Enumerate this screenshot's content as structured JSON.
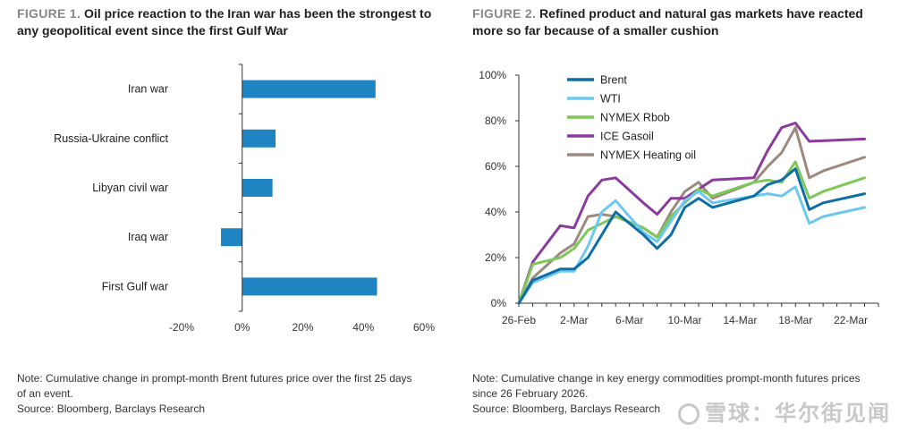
{
  "figure1": {
    "label": "FIGURE 1.",
    "title_line1": "Oil price reaction to the Iran war has been the strongest to",
    "title_line2": "any geopolitical event since the first Gulf War",
    "note_line1": "Note: Cumulative change in prompt-month Brent futures price over the first 25 days",
    "note_line2": "of an event.",
    "source": "Source: Bloomberg, Barclays Research"
  },
  "figure2": {
    "label": "FIGURE 2.",
    "title_line1": "Refined product and natural gas markets have reacted",
    "title_line2": "more so far because of a smaller cushion",
    "note_line1": "Note: Cumulative change in key energy commodities prompt-month futures prices",
    "note_line2": "since 26 February 2026.",
    "source": "Source: Bloomberg, Barclays Research"
  },
  "watermark": "雪球：华尔街见闻",
  "colors": {
    "bar": "#1e85c2",
    "brent": "#0f6ea6",
    "wti": "#6dc8ef",
    "rbob": "#7cc95a",
    "gasoil": "#8b3a9e",
    "heating": "#9c8a80"
  },
  "chart_data": [
    {
      "type": "bar",
      "orientation": "horizontal",
      "categories": [
        "Iran war",
        "Russia-Ukraine conflict",
        "Libyan civil war",
        "Iraq war",
        "First Gulf war"
      ],
      "values": [
        44,
        11,
        10,
        -7,
        44.5
      ],
      "xlim": [
        -20,
        60
      ],
      "xticks": [
        -20,
        0,
        20,
        40,
        60
      ],
      "tick_labels": [
        "-20%",
        "0%",
        "20%",
        "40%",
        "60%"
      ],
      "grid": false
    },
    {
      "type": "line",
      "x": [
        "26-Feb",
        "27-Feb",
        "28-Feb",
        "1-Mar",
        "2-Mar",
        "3-Mar",
        "4-Mar",
        "5-Mar",
        "6-Mar",
        "7-Mar",
        "8-Mar",
        "9-Mar",
        "10-Mar",
        "11-Mar",
        "12-Mar",
        "13-Mar",
        "14-Mar",
        "15-Mar",
        "16-Mar",
        "17-Mar",
        "18-Mar",
        "19-Mar",
        "20-Mar",
        "21-Mar",
        "22-Mar",
        "23-Mar",
        "24-Mar"
      ],
      "xtick_labels": [
        "26-Feb",
        "2-Mar",
        "6-Mar",
        "10-Mar",
        "14-Mar",
        "18-Mar",
        "22-Mar"
      ],
      "ylim": [
        0,
        100
      ],
      "yticks": [
        0,
        20,
        40,
        60,
        80,
        100
      ],
      "ytick_labels": [
        "0%",
        "20%",
        "40%",
        "60%",
        "80%",
        "100%"
      ],
      "legend_position": "top-left",
      "series": [
        {
          "name": "Brent",
          "color_key": "brent",
          "points": [
            [
              0,
              0
            ],
            [
              1,
              10
            ],
            [
              3,
              15
            ],
            [
              4,
              15
            ],
            [
              5,
              20
            ],
            [
              7,
              40
            ],
            [
              9,
              30
            ],
            [
              10,
              24
            ],
            [
              11,
              30
            ],
            [
              12,
              42
            ],
            [
              13,
              46
            ],
            [
              14,
              42
            ],
            [
              17,
              47
            ],
            [
              18,
              52
            ],
            [
              19,
              54
            ],
            [
              20,
              59
            ],
            [
              21,
              41
            ],
            [
              22,
              44
            ],
            [
              25,
              48
            ]
          ]
        },
        {
          "name": "WTI",
          "color_key": "wti",
          "points": [
            [
              0,
              0
            ],
            [
              1,
              9
            ],
            [
              3,
              14
            ],
            [
              4,
              14
            ],
            [
              5,
              25
            ],
            [
              6,
              40
            ],
            [
              7,
              45
            ],
            [
              9,
              31
            ],
            [
              10,
              27
            ],
            [
              11,
              36
            ],
            [
              12,
              45
            ],
            [
              13,
              49
            ],
            [
              14,
              44
            ],
            [
              17,
              47
            ],
            [
              18,
              48
            ],
            [
              19,
              47
            ],
            [
              20,
              51
            ],
            [
              21,
              35
            ],
            [
              22,
              38
            ],
            [
              25,
              42
            ]
          ]
        },
        {
          "name": "NYMEX Rbob",
          "color_key": "rbob",
          "points": [
            [
              0,
              0
            ],
            [
              1,
              17
            ],
            [
              3,
              20
            ],
            [
              4,
              24
            ],
            [
              5,
              32
            ],
            [
              6,
              35
            ],
            [
              7,
              38
            ],
            [
              9,
              33
            ],
            [
              10,
              29
            ],
            [
              11,
              38
            ],
            [
              12,
              44
            ],
            [
              13,
              50
            ],
            [
              14,
              47
            ],
            [
              17,
              53
            ],
            [
              18,
              54
            ],
            [
              19,
              53
            ],
            [
              20,
              62
            ],
            [
              21,
              46
            ],
            [
              22,
              49
            ],
            [
              25,
              55
            ]
          ]
        },
        {
          "name": "ICE Gasoil",
          "color_key": "gasoil",
          "points": [
            [
              0,
              0
            ],
            [
              1,
              18
            ],
            [
              3,
              34
            ],
            [
              4,
              33
            ],
            [
              5,
              47
            ],
            [
              6,
              54
            ],
            [
              7,
              55
            ],
            [
              9,
              44
            ],
            [
              10,
              39
            ],
            [
              11,
              46
            ],
            [
              12,
              46
            ],
            [
              13,
              50
            ],
            [
              14,
              54
            ],
            [
              17,
              55
            ],
            [
              18,
              67
            ],
            [
              19,
              77
            ],
            [
              20,
              79
            ],
            [
              21,
              71
            ],
            [
              25,
              72
            ]
          ]
        },
        {
          "name": "NYMEX Heating oil",
          "color_key": "heating",
          "points": [
            [
              0,
              0
            ],
            [
              1,
              11
            ],
            [
              3,
              22
            ],
            [
              4,
              26
            ],
            [
              5,
              38
            ],
            [
              6,
              39
            ],
            [
              7,
              38
            ],
            [
              9,
              33
            ],
            [
              10,
              29
            ],
            [
              11,
              40
            ],
            [
              12,
              49
            ],
            [
              13,
              53
            ],
            [
              14,
              46
            ],
            [
              17,
              53
            ],
            [
              18,
              60
            ],
            [
              19,
              66
            ],
            [
              20,
              77
            ],
            [
              21,
              55
            ],
            [
              22,
              58
            ],
            [
              25,
              64
            ]
          ]
        }
      ]
    }
  ]
}
